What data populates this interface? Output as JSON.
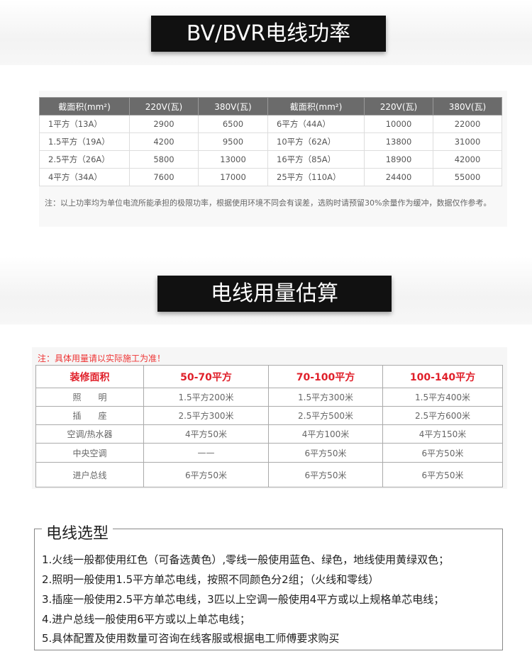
{
  "section1": {
    "title": "BV/BVR电线功率",
    "headers": [
      "截面积(mm²)",
      "220V(瓦)",
      "380V(瓦)",
      "截面积(mm²)",
      "220V(瓦)",
      "380V(瓦)"
    ],
    "rows": [
      [
        "1平方（13A）",
        "2900",
        "6500",
        "6平方（44A）",
        "10000",
        "22000"
      ],
      [
        "1.5平方（19A）",
        "4200",
        "9500",
        "10平方（62A）",
        "13800",
        "31000"
      ],
      [
        "2.5平方（26A）",
        "5800",
        "13000",
        "16平方（85A）",
        "18900",
        "42000"
      ],
      [
        "4平方（34A）",
        "7600",
        "17000",
        "25平方（110A）",
        "24400",
        "55000"
      ]
    ],
    "note": "注：以上功率均为单位电流所能承担的极限功率，根据使用环境不同会有误差，选购时请预留30%余量作为缓冲，数据仅作参考。"
  },
  "section2": {
    "title": "电线用量估算",
    "note": "注：具体用量请以实际施工为准！",
    "headers": [
      "装修面积",
      "50-70平方",
      "70-100平方",
      "100-140平方"
    ],
    "rows": [
      [
        "照　　明",
        "1.5平方200米",
        "1.5平方300米",
        "1.5平方400米"
      ],
      [
        "插　　座",
        "2.5平方300米",
        "2.5平方500米",
        "2.5平方600米"
      ],
      [
        "空调/热水器",
        "4平方50米",
        "4平方100米",
        "4平方150米"
      ],
      [
        "中央空调",
        "——",
        "6平方50米",
        "6平方50米"
      ],
      [
        "进户总线",
        "6平方50米",
        "6平方50米",
        "6平方50米"
      ]
    ],
    "accent": "#e0202a"
  },
  "section3": {
    "title": "电线选型",
    "lines": [
      "1.火线一般都使用红色（可备选黄色）,零线一般使用蓝色、绿色，地线使用黄绿双色；",
      "2.照明一般使用1.5平方单芯电线，按照不同颜色分2组；（火线和零线）",
      "3.插座一般使用2.5平方单芯电线，3匹以上空调一般使用4平方或以上规格单芯电线；",
      "4.进户总线一般使用6平方或以上单芯电线；",
      "5.具体配置及使用数量可咨询在线客服或根据电工师傅要求购买"
    ]
  }
}
